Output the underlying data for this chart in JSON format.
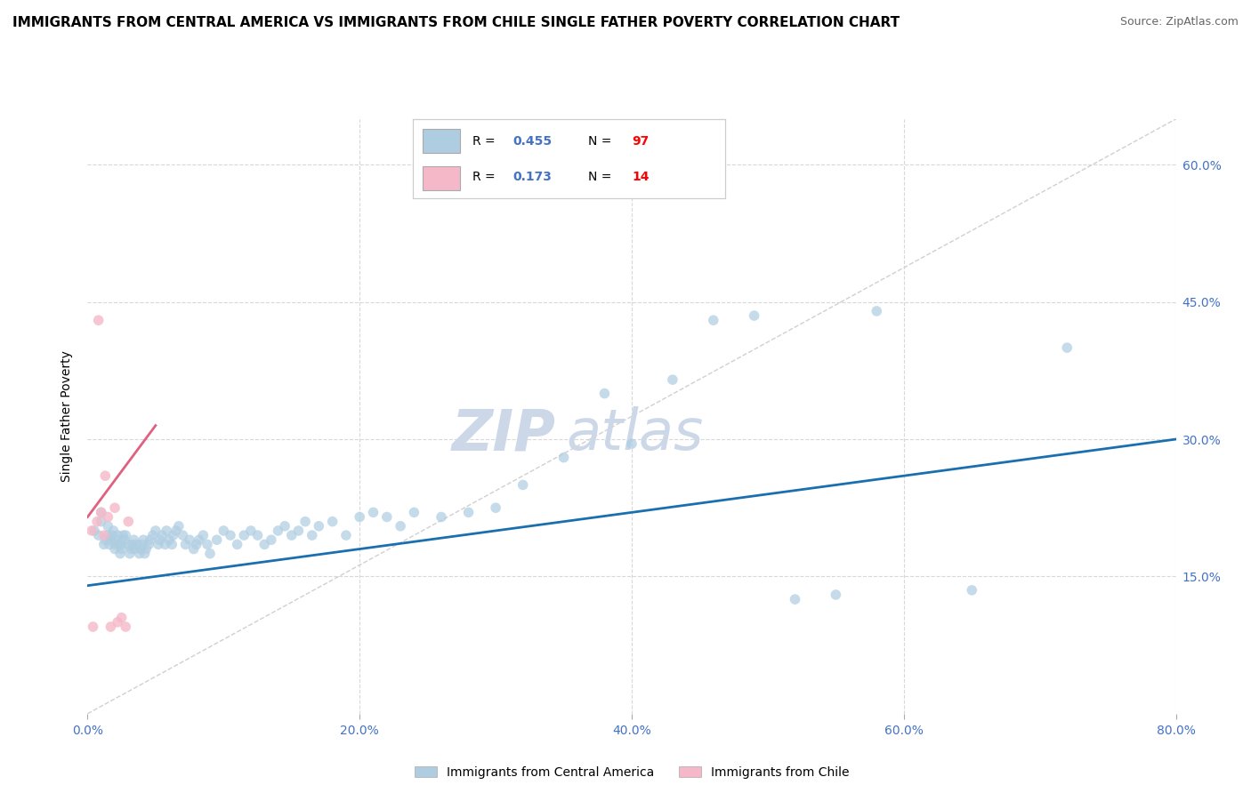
{
  "title": "IMMIGRANTS FROM CENTRAL AMERICA VS IMMIGRANTS FROM CHILE SINGLE FATHER POVERTY CORRELATION CHART",
  "source": "Source: ZipAtlas.com",
  "ylabel": "Single Father Poverty",
  "watermark": "ZIPatlas",
  "legend_blue_r": "0.455",
  "legend_blue_n": "97",
  "legend_pink_r": "0.173",
  "legend_pink_n": "14",
  "legend_blue_label": "Immigrants from Central America",
  "legend_pink_label": "Immigrants from Chile",
  "xlim": [
    0.0,
    0.8
  ],
  "ylim": [
    0.0,
    0.65
  ],
  "xticks": [
    0.0,
    0.2,
    0.4,
    0.6,
    0.8
  ],
  "yticks": [
    0.15,
    0.3,
    0.45,
    0.6
  ],
  "blue_x": [
    0.005,
    0.008,
    0.01,
    0.01,
    0.012,
    0.013,
    0.015,
    0.015,
    0.016,
    0.017,
    0.018,
    0.019,
    0.02,
    0.02,
    0.021,
    0.022,
    0.023,
    0.024,
    0.025,
    0.025,
    0.026,
    0.027,
    0.028,
    0.03,
    0.031,
    0.032,
    0.033,
    0.034,
    0.035,
    0.036,
    0.038,
    0.039,
    0.04,
    0.041,
    0.042,
    0.043,
    0.045,
    0.046,
    0.048,
    0.05,
    0.052,
    0.053,
    0.055,
    0.057,
    0.058,
    0.06,
    0.062,
    0.063,
    0.065,
    0.067,
    0.07,
    0.072,
    0.075,
    0.078,
    0.08,
    0.082,
    0.085,
    0.088,
    0.09,
    0.095,
    0.1,
    0.105,
    0.11,
    0.115,
    0.12,
    0.125,
    0.13,
    0.135,
    0.14,
    0.145,
    0.15,
    0.155,
    0.16,
    0.165,
    0.17,
    0.18,
    0.19,
    0.2,
    0.21,
    0.22,
    0.23,
    0.24,
    0.26,
    0.28,
    0.3,
    0.32,
    0.35,
    0.38,
    0.4,
    0.43,
    0.46,
    0.49,
    0.52,
    0.55,
    0.58,
    0.65,
    0.72
  ],
  "blue_y": [
    0.2,
    0.195,
    0.21,
    0.22,
    0.185,
    0.19,
    0.195,
    0.205,
    0.185,
    0.19,
    0.195,
    0.2,
    0.185,
    0.18,
    0.19,
    0.195,
    0.185,
    0.175,
    0.18,
    0.185,
    0.195,
    0.19,
    0.195,
    0.185,
    0.175,
    0.18,
    0.185,
    0.19,
    0.18,
    0.185,
    0.175,
    0.18,
    0.185,
    0.19,
    0.175,
    0.18,
    0.185,
    0.19,
    0.195,
    0.2,
    0.185,
    0.19,
    0.195,
    0.185,
    0.2,
    0.19,
    0.185,
    0.195,
    0.2,
    0.205,
    0.195,
    0.185,
    0.19,
    0.18,
    0.185,
    0.19,
    0.195,
    0.185,
    0.175,
    0.19,
    0.2,
    0.195,
    0.185,
    0.195,
    0.2,
    0.195,
    0.185,
    0.19,
    0.2,
    0.205,
    0.195,
    0.2,
    0.21,
    0.195,
    0.205,
    0.21,
    0.195,
    0.215,
    0.22,
    0.215,
    0.205,
    0.22,
    0.215,
    0.22,
    0.225,
    0.25,
    0.28,
    0.35,
    0.295,
    0.365,
    0.43,
    0.435,
    0.125,
    0.13,
    0.44,
    0.135,
    0.4
  ],
  "pink_x": [
    0.003,
    0.004,
    0.007,
    0.008,
    0.01,
    0.012,
    0.013,
    0.015,
    0.017,
    0.02,
    0.022,
    0.025,
    0.028,
    0.03
  ],
  "pink_y": [
    0.2,
    0.095,
    0.21,
    0.43,
    0.22,
    0.195,
    0.26,
    0.215,
    0.095,
    0.225,
    0.1,
    0.105,
    0.095,
    0.21
  ],
  "blue_line_x": [
    0.0,
    0.8
  ],
  "blue_line_y": [
    0.14,
    0.3
  ],
  "pink_line_x": [
    0.0,
    0.05
  ],
  "pink_line_y": [
    0.215,
    0.315
  ],
  "ref_line_x": [
    0.0,
    0.8
  ],
  "ref_line_y": [
    0.0,
    0.65
  ],
  "blue_dot_color": "#aecde1",
  "pink_dot_color": "#f5b8c8",
  "blue_line_color": "#1a6faf",
  "pink_line_color": "#e06080",
  "ref_line_color": "#d0d0d0",
  "grid_color": "#d8d8d8",
  "title_fontsize": 11,
  "source_fontsize": 9,
  "watermark_fontsize": 46,
  "watermark_color": "#ccd8e8",
  "tick_color": "#4472c4",
  "ylabel_fontsize": 10,
  "background_color": "#ffffff"
}
